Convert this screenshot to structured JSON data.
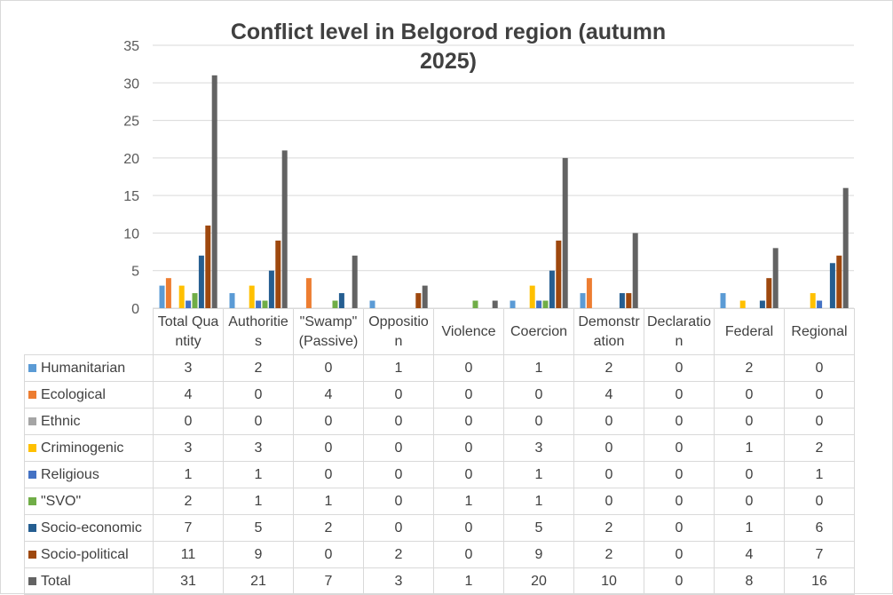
{
  "chart_data": {
    "type": "bar",
    "title": "Conflict level in Belgorod region (autumn 2025)",
    "xlabel": "",
    "ylabel": "",
    "ylim": [
      0,
      35
    ],
    "yticks": [
      "0",
      "5",
      "10",
      "15",
      "20",
      "25",
      "30",
      "35"
    ],
    "grid": true,
    "legend": "data table",
    "categories": [
      "Total Quantity",
      "Authorities",
      "\"Swamp\" (Passive)",
      "Opposition",
      "Violence",
      "Coercion",
      "Demonstration",
      "Declaration",
      "Federal",
      "Regional"
    ],
    "series": [
      {
        "name": "Humanitarian",
        "color": "#5b9bd5",
        "values": [
          3,
          2,
          0,
          1,
          0,
          1,
          2,
          0,
          2,
          0
        ]
      },
      {
        "name": "Ecological",
        "color": "#ed7d31",
        "values": [
          4,
          0,
          4,
          0,
          0,
          0,
          4,
          0,
          0,
          0
        ]
      },
      {
        "name": "Ethnic",
        "color": "#a5a5a5",
        "values": [
          0,
          0,
          0,
          0,
          0,
          0,
          0,
          0,
          0,
          0
        ]
      },
      {
        "name": "Criminogenic",
        "color": "#ffc000",
        "values": [
          3,
          3,
          0,
          0,
          0,
          3,
          0,
          0,
          1,
          2
        ]
      },
      {
        "name": "Religious",
        "color": "#4472c4",
        "values": [
          1,
          1,
          0,
          0,
          0,
          1,
          0,
          0,
          0,
          1
        ]
      },
      {
        "name": "\"SVO\"",
        "color": "#70ad47",
        "values": [
          2,
          1,
          1,
          0,
          1,
          1,
          0,
          0,
          0,
          0
        ]
      },
      {
        "name": "Socio-economic",
        "color": "#255e91",
        "values": [
          7,
          5,
          2,
          0,
          0,
          5,
          2,
          0,
          1,
          6
        ]
      },
      {
        "name": "Socio-political",
        "color": "#9e480e",
        "values": [
          11,
          9,
          0,
          2,
          0,
          9,
          2,
          0,
          4,
          7
        ]
      },
      {
        "name": "Total",
        "color": "#636363",
        "values": [
          31,
          21,
          7,
          3,
          1,
          20,
          10,
          0,
          8,
          16
        ]
      }
    ]
  }
}
